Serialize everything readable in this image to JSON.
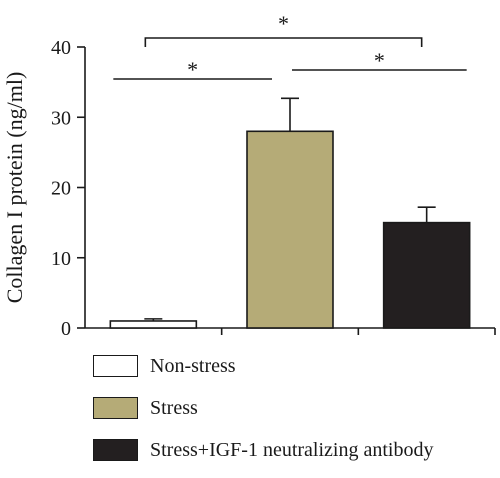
{
  "chart_data": {
    "type": "bar",
    "ylabel": "Collagen I protein (ng/ml)",
    "ylim": [
      0,
      40
    ],
    "yticks": [
      0,
      10,
      20,
      30,
      40
    ],
    "categories": [
      "Non-stress",
      "Stress",
      "Stress+IGF-1 neutralizing antibody"
    ],
    "values": [
      1.0,
      28.0,
      15.0
    ],
    "errors": [
      0.3,
      4.7,
      2.2
    ],
    "colors": [
      "#ffffff",
      "#b5ab77",
      "#231f20"
    ],
    "significance": [
      {
        "from": 0,
        "to": 1,
        "label": "*"
      },
      {
        "from": 1,
        "to": 2,
        "label": "*"
      },
      {
        "from": 0,
        "to": 2,
        "label": "*"
      }
    ],
    "legend": "bottom"
  }
}
